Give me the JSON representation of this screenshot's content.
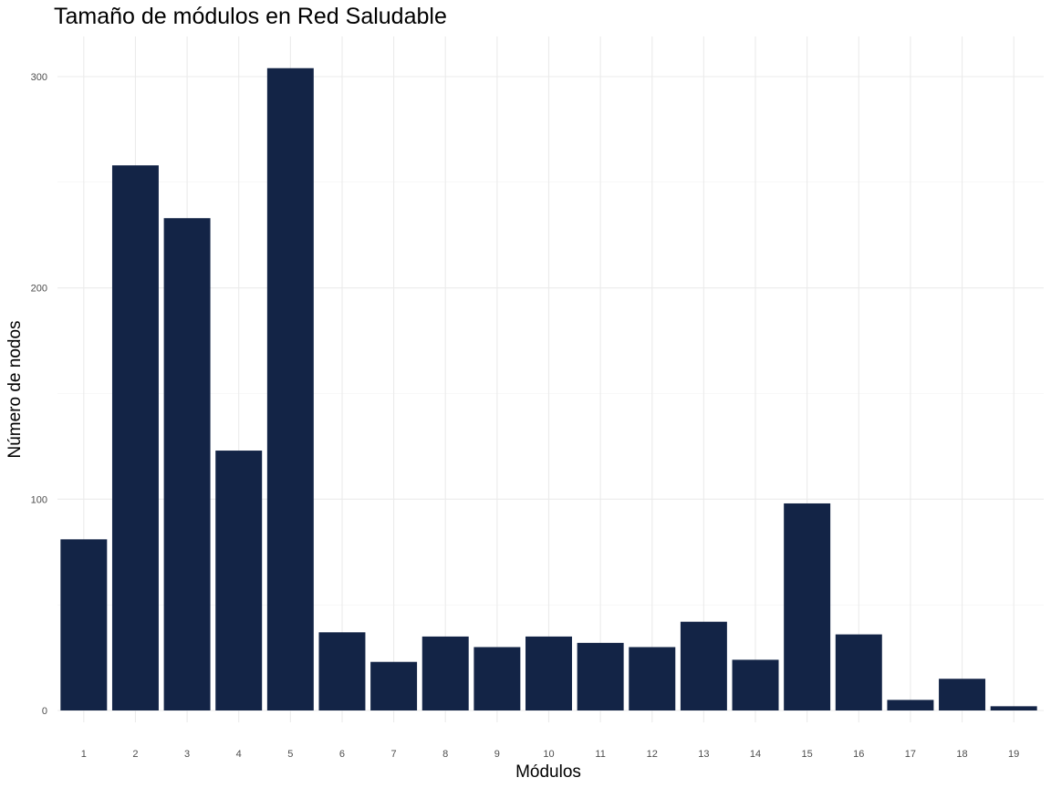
{
  "chart_data": {
    "type": "bar",
    "title": "Tamaño de módulos en Red Saludable",
    "xlabel": "Módulos",
    "ylabel": "Número de nodos",
    "categories": [
      "1",
      "2",
      "3",
      "4",
      "5",
      "6",
      "7",
      "8",
      "9",
      "10",
      "11",
      "12",
      "13",
      "14",
      "15",
      "16",
      "17",
      "18",
      "19"
    ],
    "values": [
      81,
      258,
      233,
      123,
      304,
      37,
      23,
      35,
      30,
      35,
      32,
      30,
      42,
      24,
      98,
      36,
      5,
      15,
      2
    ],
    "ylim": [
      0,
      304
    ],
    "yticks": [
      "0",
      "100",
      "200",
      "300"
    ],
    "grid": true,
    "legend": "none",
    "bar_color": "#132446"
  }
}
